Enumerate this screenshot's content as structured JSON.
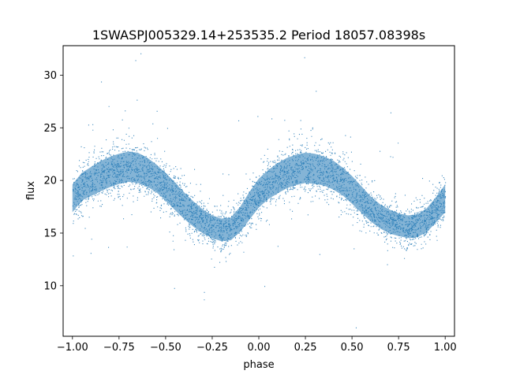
{
  "chart_data": {
    "type": "scatter",
    "title": "1SWASPJ005329.14+253535.2 Period 18057.08398s",
    "xlabel": "phase",
    "ylabel": "flux",
    "xlim": [
      -1.05,
      1.05
    ],
    "ylim": [
      5.2,
      32.8
    ],
    "xticks": [
      -1.0,
      -0.75,
      -0.5,
      -0.25,
      0.0,
      0.25,
      0.5,
      0.75,
      1.0
    ],
    "xtick_labels": [
      "−1.00",
      "−0.75",
      "−0.50",
      "−0.25",
      "0.00",
      "0.25",
      "0.50",
      "0.75",
      "1.00"
    ],
    "yticks": [
      10,
      15,
      20,
      25,
      30
    ],
    "ytick_labels": [
      "10",
      "15",
      "20",
      "25",
      "30"
    ],
    "grid": false,
    "marker_color": "#1f77b4",
    "series": [
      {
        "x": [
          -1.0,
          -0.95,
          -0.9,
          -0.85,
          -0.8,
          -0.75,
          -0.7,
          -0.65,
          -0.6,
          -0.55,
          -0.5,
          -0.45,
          -0.4,
          -0.35,
          -0.3,
          -0.25,
          -0.2,
          -0.15,
          -0.1,
          -0.05,
          0.0,
          0.05,
          0.1,
          0.15,
          0.2,
          0.25,
          0.3,
          0.35,
          0.4,
          0.45,
          0.5,
          0.55,
          0.6,
          0.65,
          0.7,
          0.75,
          0.8,
          0.85,
          0.9,
          0.95,
          1.0
        ],
        "y": [
          18.3,
          19.4,
          19.9,
          20.4,
          20.8,
          21.1,
          21.3,
          21.2,
          20.8,
          20.2,
          19.4,
          18.5,
          17.6,
          16.8,
          16.1,
          15.6,
          15.3,
          15.4,
          16.3,
          17.6,
          18.8,
          19.6,
          20.2,
          20.7,
          21.0,
          21.2,
          21.1,
          20.9,
          20.5,
          19.9,
          19.1,
          18.2,
          17.3,
          16.6,
          16.1,
          15.8,
          15.6,
          15.7,
          16.2,
          17.2,
          18.3
        ],
        "spread": [
          2.2,
          2.2,
          2.3,
          2.4,
          2.4,
          2.4,
          2.4,
          2.4,
          2.3,
          2.2,
          2.2,
          2.2,
          2.1,
          2.0,
          1.9,
          1.8,
          1.8,
          1.8,
          2.0,
          2.2,
          2.3,
          2.3,
          2.4,
          2.4,
          2.4,
          2.4,
          2.4,
          2.3,
          2.3,
          2.2,
          2.2,
          2.1,
          2.0,
          1.9,
          1.9,
          1.8,
          1.8,
          1.8,
          1.9,
          2.0,
          2.2
        ]
      }
    ]
  }
}
